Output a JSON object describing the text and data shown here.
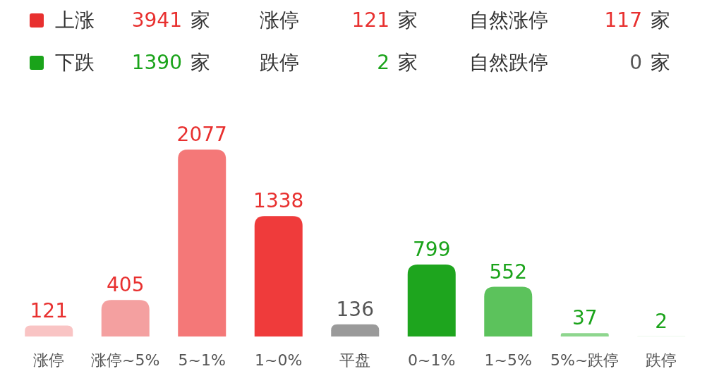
{
  "chart_data": [
    {
      "type": "other",
      "annotations": [
        "上涨",
        "3941",
        "家",
        "涨停",
        "121",
        "家",
        "自然涨停",
        "117",
        "家",
        "下跌",
        "1390",
        "家",
        "跌停",
        "2",
        "家",
        "自然跌停",
        "0",
        "家"
      ],
      "colors": [
        "#e8302f",
        "#1aa31a"
      ]
    },
    {
      "type": "bar",
      "categories": [
        "涨停",
        "涨停~5%",
        "5~1%",
        "1~0%",
        "平盘",
        "0~1%",
        "1~5%",
        "5%~跌停",
        "跌停"
      ],
      "values": [
        121,
        405,
        2077,
        1338,
        136,
        799,
        552,
        37,
        2
      ],
      "colors": [
        "#f9c4c4",
        "#f4a0a0",
        "#f47878",
        "#ef3b3b",
        "#9a9a9a",
        "#1ea51e",
        "#5cc25c",
        "#8ed68e",
        "#b9e6b9"
      ],
      "data_labels": true
    }
  ]
}
